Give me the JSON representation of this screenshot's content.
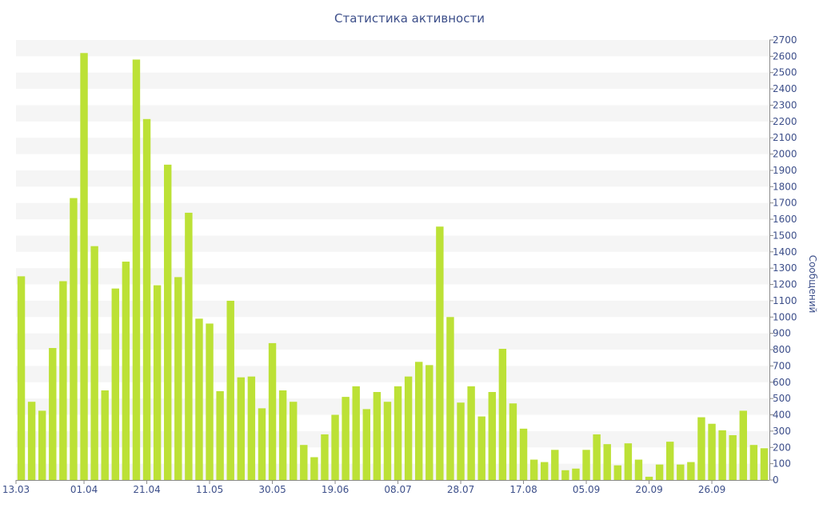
{
  "chart_data": {
    "type": "bar",
    "title": "Статистика активности",
    "xlabel": "",
    "ylabel": "Сообщений",
    "ylim": [
      0,
      2700
    ],
    "y_ticks": [
      0,
      100,
      200,
      300,
      400,
      500,
      600,
      700,
      800,
      900,
      1000,
      1100,
      1200,
      1300,
      1400,
      1500,
      1600,
      1700,
      1800,
      1900,
      2000,
      2100,
      2200,
      2300,
      2400,
      2500,
      2600,
      2700
    ],
    "y_axis_position": "right",
    "grid": "horizontal-bands",
    "x_tick_labels": [
      {
        "label": "13.03",
        "index": 0
      },
      {
        "label": "01.04",
        "index": 6
      },
      {
        "label": "21.04",
        "index": 12
      },
      {
        "label": "11.05",
        "index": 18
      },
      {
        "label": "30.05",
        "index": 24
      },
      {
        "label": "19.06",
        "index": 30
      },
      {
        "label": "08.07",
        "index": 36
      },
      {
        "label": "28.07",
        "index": 42
      },
      {
        "label": "17.08",
        "index": 48
      },
      {
        "label": "05.09",
        "index": 54
      },
      {
        "label": "20.09",
        "index": 60
      },
      {
        "label": "26.09",
        "index": 66
      }
    ],
    "values": [
      1250,
      480,
      425,
      810,
      1220,
      1730,
      2620,
      1435,
      550,
      1175,
      1340,
      2580,
      2215,
      1195,
      1935,
      1245,
      1640,
      990,
      960,
      545,
      1100,
      630,
      635,
      440,
      840,
      550,
      480,
      215,
      140,
      280,
      400,
      510,
      575,
      435,
      540,
      480,
      575,
      635,
      725,
      705,
      1555,
      1000,
      475,
      575,
      390,
      540,
      805,
      470,
      315,
      125,
      110,
      185,
      60,
      70,
      185,
      280,
      220,
      90,
      225,
      125,
      20,
      95,
      235,
      95,
      110,
      385,
      345,
      305,
      275,
      425,
      215,
      195
    ],
    "bar_color": "#bce136",
    "band_color": "#f5f5f5",
    "axis_text_color": "#3d4f8a"
  }
}
